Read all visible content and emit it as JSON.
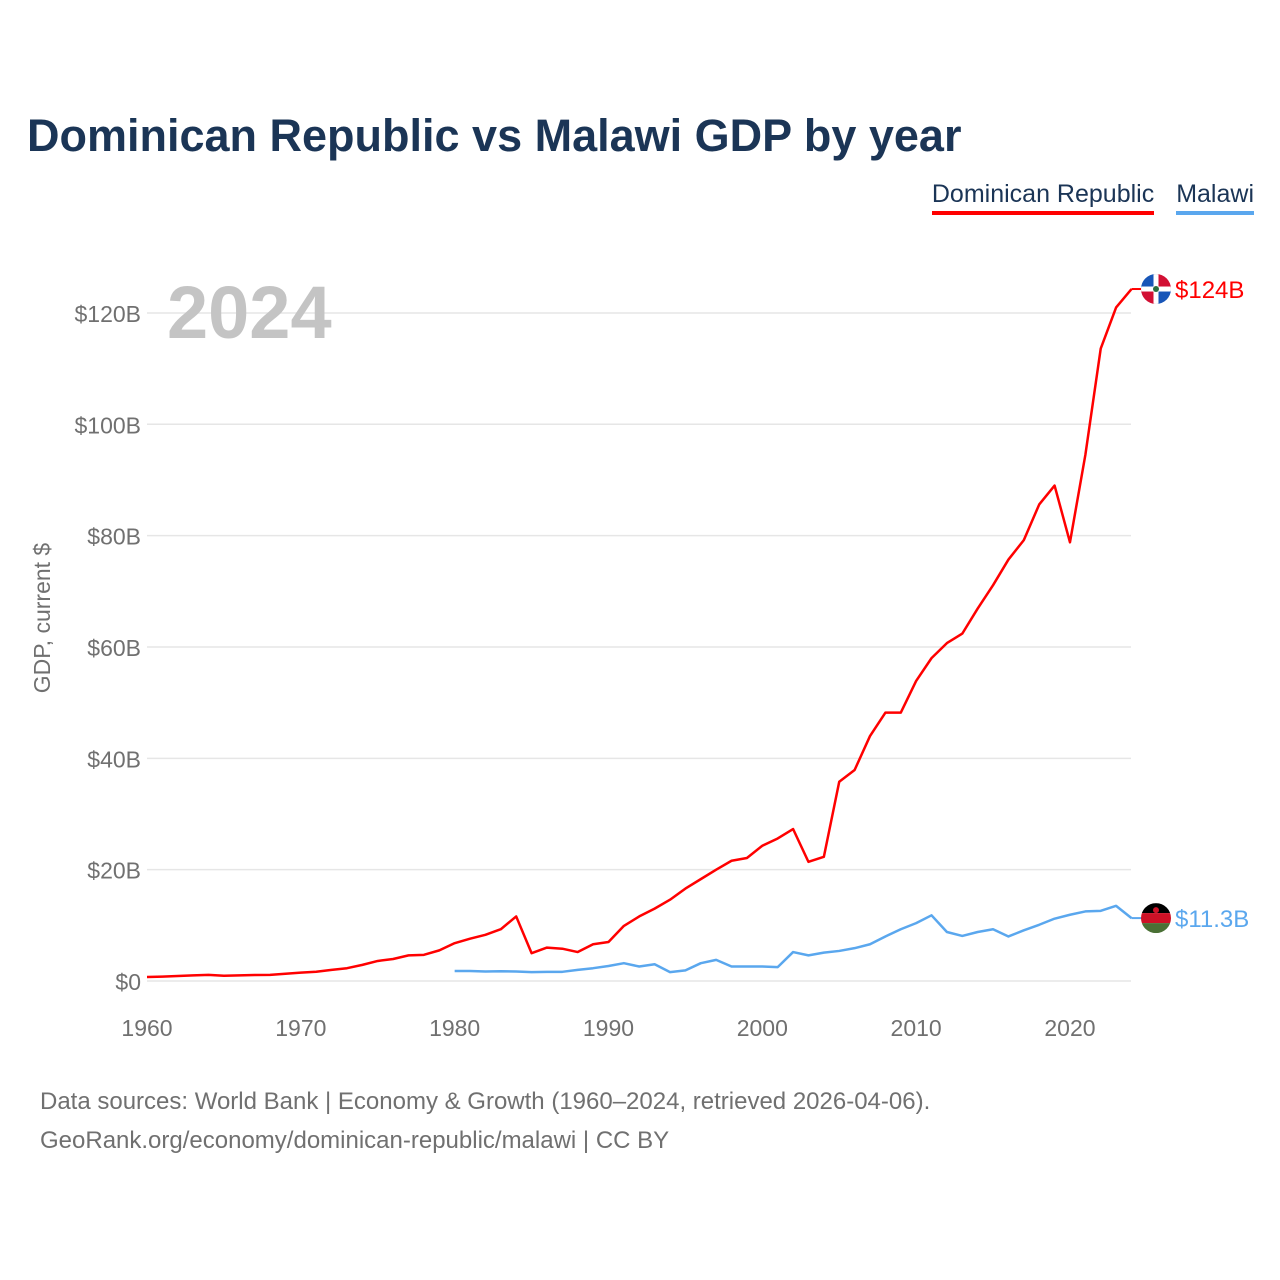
{
  "chart_data": {
    "type": "line",
    "title": "Dominican Republic vs Malawi GDP by year",
    "xlabel": "",
    "ylabel": "GDP, current $",
    "xlim": [
      1960,
      2024
    ],
    "ylim": [
      0,
      130
    ],
    "x_ticks": [
      1960,
      1970,
      1980,
      1990,
      2000,
      2010,
      2020
    ],
    "y_ticks": [
      0,
      20,
      40,
      60,
      80,
      100,
      120
    ],
    "y_tick_labels": [
      "$0",
      "$20B",
      "$40B",
      "$60B",
      "$80B",
      "$100B",
      "$120B"
    ],
    "grid": true,
    "legend_placement": "top-right",
    "year_watermark": "2024",
    "series": [
      {
        "name": "Dominican Republic",
        "color": "#ff0000",
        "end_label": "$124B",
        "flag": "dominican-republic-flag",
        "start_year": 1960,
        "values": [
          0.72,
          0.79,
          0.9,
          1.0,
          1.1,
          0.94,
          1.0,
          1.07,
          1.1,
          1.3,
          1.5,
          1.67,
          2.0,
          2.3,
          2.9,
          3.6,
          3.95,
          4.6,
          4.7,
          5.5,
          6.8,
          7.6,
          8.3,
          9.3,
          11.6,
          5.0,
          6.0,
          5.8,
          5.2,
          6.6,
          7.0,
          9.9,
          11.6,
          13.0,
          14.6,
          16.6,
          18.3,
          20.0,
          21.6,
          22.1,
          24.3,
          25.6,
          27.3,
          21.4,
          22.3,
          35.8,
          37.9,
          44.0,
          48.2,
          48.2,
          53.9,
          58.0,
          60.7,
          62.4,
          66.9,
          71.1,
          75.7,
          79.2,
          85.6,
          89.0,
          78.8,
          94.5,
          113.6,
          121.0,
          124.3
        ]
      },
      {
        "name": "Malawi",
        "color": "#5aa7ee",
        "end_label": "$11.3B",
        "flag": "malawi-flag",
        "start_year": 1980,
        "values": [
          1.8,
          1.8,
          1.7,
          1.75,
          1.7,
          1.6,
          1.65,
          1.65,
          2.0,
          2.3,
          2.7,
          3.2,
          2.6,
          3.0,
          1.6,
          1.9,
          3.2,
          3.8,
          2.6,
          2.6,
          2.6,
          2.5,
          5.2,
          4.6,
          5.1,
          5.4,
          5.9,
          6.6,
          8.0,
          9.3,
          10.4,
          11.8,
          8.8,
          8.1,
          8.8,
          9.3,
          8.0,
          9.1,
          10.1,
          11.2,
          11.9,
          12.5,
          12.6,
          13.5,
          11.3
        ]
      }
    ]
  },
  "footer": {
    "line1": "Data sources: World Bank | Economy & Growth (1960–2024, retrieved 2026-04-06).",
    "line2": "GeoRank.org/economy/dominican-republic/malawi | CC BY"
  }
}
